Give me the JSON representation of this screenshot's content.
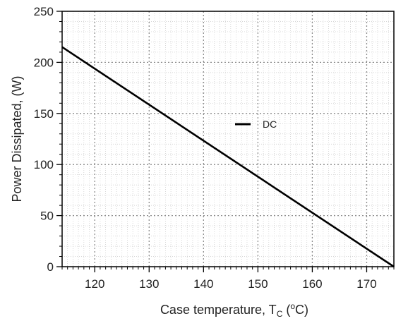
{
  "chart_data": {
    "type": "line",
    "title": "",
    "xlabel": {
      "prefix": "Case temperature, T",
      "sub": "C",
      "mid": " (",
      "sup": "o",
      "suffix": "C)"
    },
    "ylabel": "Power Dissipated, (W)",
    "xlim": [
      114,
      175
    ],
    "ylim": [
      0,
      250
    ],
    "x_ticks": [
      120,
      130,
      140,
      150,
      160,
      170
    ],
    "y_ticks": [
      0,
      50,
      100,
      150,
      200,
      250
    ],
    "x_minor_step": 1,
    "y_minor_step": 10,
    "grid": true,
    "legend_position": "center",
    "series": [
      {
        "name": "DC",
        "x": [
          114,
          175
        ],
        "y": [
          215,
          0
        ],
        "color": "#000000"
      }
    ]
  }
}
